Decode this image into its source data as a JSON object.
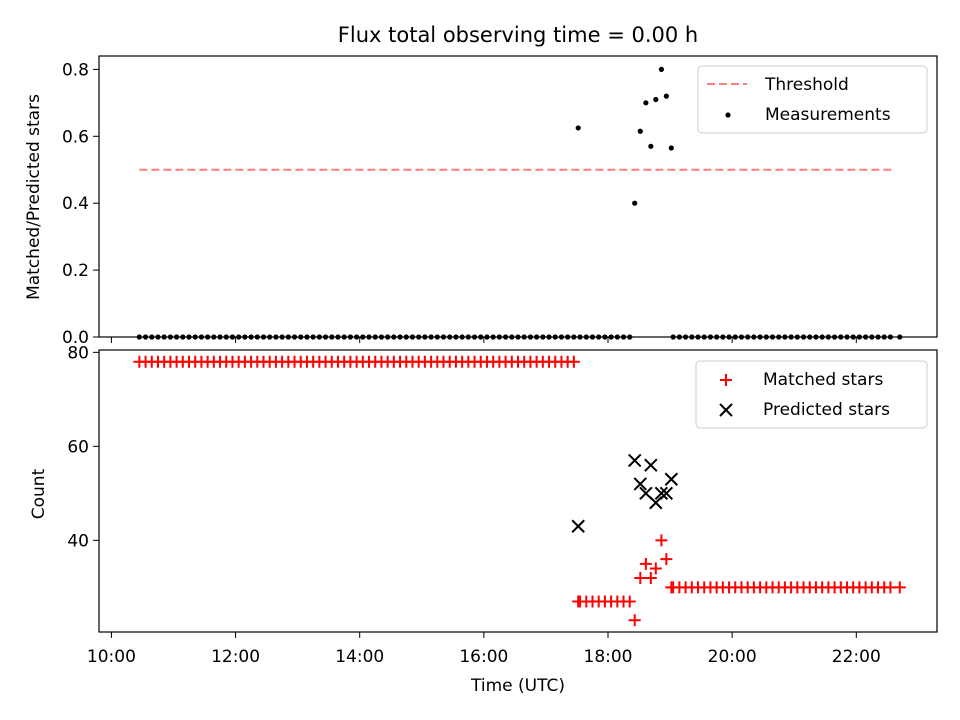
{
  "chart_data": [
    {
      "type": "scatter",
      "title": "Flux total observing time = 0.00 h",
      "xlabel": "",
      "ylabel": "Matched/Predicted stars",
      "xlim": [
        9.8,
        23.3
      ],
      "ylim": [
        0.0,
        0.84
      ],
      "yticks": [
        0.0,
        0.2,
        0.4,
        0.6,
        0.8
      ],
      "ytick_labels": [
        "0.0",
        "0.2",
        "0.4",
        "0.6",
        "0.8"
      ],
      "legend_position": "upper right",
      "grid": false,
      "threshold": {
        "name": "Threshold",
        "value": 0.5,
        "x_range": [
          10.45,
          22.6
        ],
        "color": "#ff7f7f",
        "style": "dashed"
      },
      "series": [
        {
          "name": "Measurements",
          "marker": "dot",
          "color": "#000000",
          "zero_runs": [
            {
              "start": 10.45,
              "end": 17.45,
              "step": 0.1
            },
            {
              "start": 17.55,
              "end": 18.35,
              "step": 0.1
            },
            {
              "start": 19.05,
              "end": 22.55,
              "step": 0.1
            }
          ],
          "points": [
            [
              17.52,
              0.625
            ],
            [
              18.43,
              0.4
            ],
            [
              18.52,
              0.615
            ],
            [
              18.61,
              0.7
            ],
            [
              18.69,
              0.57
            ],
            [
              18.77,
              0.71
            ],
            [
              18.86,
              0.8
            ],
            [
              18.94,
              0.72
            ],
            [
              19.02,
              0.565
            ],
            [
              22.7,
              0.0
            ]
          ]
        }
      ]
    },
    {
      "type": "scatter",
      "title": "",
      "xlabel": "Time (UTC)",
      "ylabel": "Count",
      "xlim": [
        9.8,
        23.3
      ],
      "ylim": [
        20.5,
        80.5
      ],
      "xticks": [
        10,
        12,
        14,
        16,
        18,
        20,
        22
      ],
      "xtick_labels": [
        "10:00",
        "12:00",
        "14:00",
        "16:00",
        "18:00",
        "20:00",
        "22:00"
      ],
      "yticks": [
        40,
        60,
        80
      ],
      "ytick_labels": [
        "40",
        "60",
        "80"
      ],
      "legend_position": "upper right",
      "grid": false,
      "series": [
        {
          "name": "Matched stars",
          "marker": "plus",
          "color": "#ff0000",
          "runs": [
            {
              "start": 10.45,
              "end": 17.45,
              "step": 0.1,
              "value": 78
            },
            {
              "start": 17.55,
              "end": 18.35,
              "step": 0.1,
              "value": 27
            },
            {
              "start": 19.05,
              "end": 22.55,
              "step": 0.1,
              "value": 30
            }
          ],
          "points": [
            [
              17.52,
              27
            ],
            [
              18.43,
              23
            ],
            [
              18.52,
              32
            ],
            [
              18.61,
              35
            ],
            [
              18.69,
              32
            ],
            [
              18.77,
              34
            ],
            [
              18.86,
              40
            ],
            [
              18.94,
              36
            ],
            [
              19.02,
              30
            ],
            [
              22.7,
              30
            ]
          ]
        },
        {
          "name": "Predicted stars",
          "marker": "x",
          "color": "#000000",
          "points": [
            [
              17.52,
              43
            ],
            [
              18.43,
              57
            ],
            [
              18.52,
              52
            ],
            [
              18.61,
              50
            ],
            [
              18.69,
              56
            ],
            [
              18.77,
              48
            ],
            [
              18.86,
              50
            ],
            [
              18.94,
              50
            ],
            [
              19.02,
              53
            ]
          ]
        }
      ]
    }
  ]
}
